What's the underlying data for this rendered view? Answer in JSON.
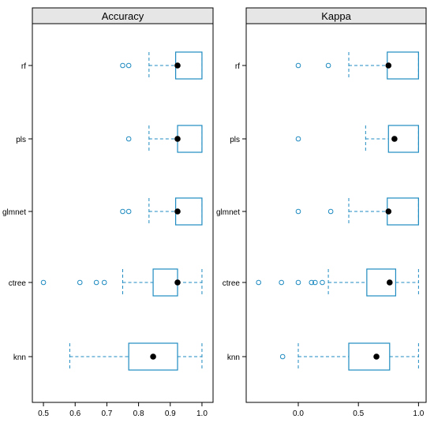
{
  "colors": {
    "strip_bg": "#e6e6e6",
    "frame": "#000000",
    "box": "#1f8bc0",
    "median": "#000000",
    "text": "#000000"
  },
  "chart_data": {
    "type": "box",
    "categories": [
      "rf",
      "pls",
      "glmnet",
      "ctree",
      "knn"
    ],
    "panels": [
      {
        "title": "Accuracy",
        "xlim": [
          0.47,
          1.03
        ],
        "ticks": [
          {
            "value": 0.5,
            "label": "0.5"
          },
          {
            "value": 0.6,
            "label": "0.6"
          },
          {
            "value": 0.7,
            "label": "0.7"
          },
          {
            "value": 0.8,
            "label": "0.8"
          },
          {
            "value": 0.9,
            "label": "0.9"
          },
          {
            "value": 1.0,
            "label": "1.0"
          }
        ],
        "boxes": [
          {
            "category": "rf",
            "min": 0.833,
            "q1": 0.917,
            "median": 0.923,
            "q3": 1.0,
            "max": 1.0,
            "outliers": [
              0.75,
              0.769
            ]
          },
          {
            "category": "pls",
            "min": 0.833,
            "q1": 0.923,
            "median": 0.923,
            "q3": 1.0,
            "max": 1.0,
            "outliers": [
              0.769
            ]
          },
          {
            "category": "glmnet",
            "min": 0.833,
            "q1": 0.917,
            "median": 0.923,
            "q3": 1.0,
            "max": 1.0,
            "outliers": [
              0.75,
              0.769
            ]
          },
          {
            "category": "ctree",
            "min": 0.75,
            "q1": 0.846,
            "median": 0.923,
            "q3": 0.923,
            "max": 1.0,
            "outliers": [
              0.5,
              0.615,
              0.667,
              0.692
            ]
          },
          {
            "category": "knn",
            "min": 0.583,
            "q1": 0.769,
            "median": 0.846,
            "q3": 0.923,
            "max": 1.0,
            "outliers": []
          }
        ]
      },
      {
        "title": "Kappa",
        "xlim": [
          -0.42,
          1.05
        ],
        "ticks": [
          {
            "value": 0.0,
            "label": "0.0"
          },
          {
            "value": 0.5,
            "label": "0.5"
          },
          {
            "value": 1.0,
            "label": "1.0"
          }
        ],
        "boxes": [
          {
            "category": "rf",
            "min": 0.42,
            "q1": 0.74,
            "median": 0.75,
            "q3": 1.0,
            "max": 1.0,
            "outliers": [
              0.0,
              0.25
            ]
          },
          {
            "category": "pls",
            "min": 0.56,
            "q1": 0.75,
            "median": 0.8,
            "q3": 1.0,
            "max": 1.0,
            "outliers": [
              0.0
            ]
          },
          {
            "category": "glmnet",
            "min": 0.42,
            "q1": 0.74,
            "median": 0.75,
            "q3": 1.0,
            "max": 1.0,
            "outliers": [
              0.0,
              0.27
            ]
          },
          {
            "category": "ctree",
            "min": 0.25,
            "q1": 0.57,
            "median": 0.76,
            "q3": 0.81,
            "max": 1.0,
            "outliers": [
              -0.33,
              -0.14,
              0.0,
              0.11,
              0.14,
              0.2
            ]
          },
          {
            "category": "knn",
            "min": 0.0,
            "q1": 0.42,
            "median": 0.65,
            "q3": 0.76,
            "max": 1.0,
            "outliers": [
              -0.13
            ]
          }
        ]
      }
    ]
  }
}
